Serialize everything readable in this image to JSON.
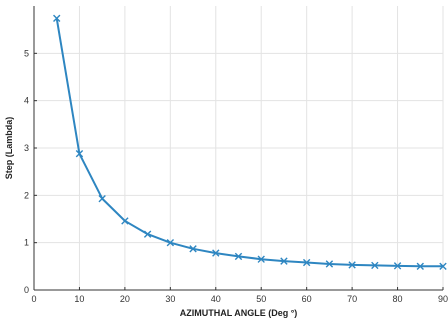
{
  "chart_data": {
    "type": "line",
    "title": "",
    "xlabel": "AZIMUTHAL ANGLE (Deg °)",
    "ylabel": "Step (Lambda)",
    "xlim": [
      0,
      90
    ],
    "ylim": [
      0,
      6
    ],
    "xticks": [
      0,
      10,
      20,
      30,
      40,
      50,
      60,
      70,
      80,
      90
    ],
    "yticks": [
      0,
      1,
      2,
      3,
      4,
      5
    ],
    "grid": true,
    "series": [
      {
        "color": "#2e86c1",
        "marker": "x",
        "x": [
          5,
          10,
          15,
          20,
          25,
          30,
          35,
          40,
          45,
          50,
          55,
          60,
          65,
          70,
          75,
          80,
          85,
          90
        ],
        "y": [
          5.74,
          2.88,
          1.93,
          1.46,
          1.18,
          1.0,
          0.87,
          0.78,
          0.71,
          0.65,
          0.61,
          0.58,
          0.55,
          0.53,
          0.52,
          0.51,
          0.5,
          0.5
        ]
      }
    ]
  }
}
